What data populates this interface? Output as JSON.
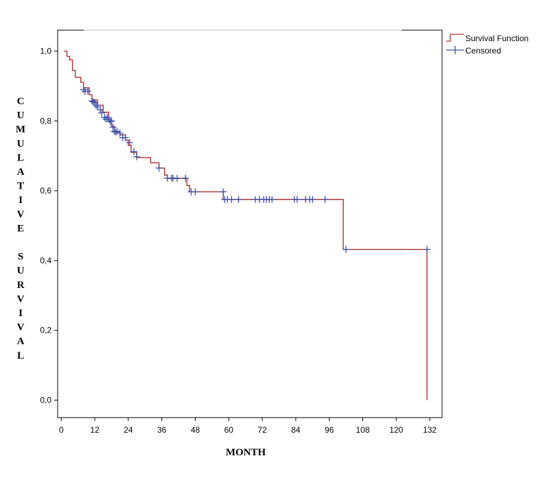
{
  "chart_data": {
    "type": "line",
    "title": "",
    "xlabel": "MONTH",
    "ylabel": "CUMULATIVE SURVIVAL",
    "xlim": [
      -1.3,
      136.4
    ],
    "ylim": [
      -0.05,
      1.06
    ],
    "x_ticks": [
      0,
      12,
      24,
      36,
      48,
      60,
      72,
      84,
      96,
      108,
      120,
      132
    ],
    "x_tick_labels": [
      "0",
      "12",
      "24",
      "36",
      "48",
      "60",
      "72",
      "84",
      "96",
      "108",
      "120",
      "132"
    ],
    "y_ticks": [
      0.0,
      0.2,
      0.4,
      0.6,
      0.8,
      1.0
    ],
    "y_tick_labels": [
      "0,0",
      "0,2",
      "0,4",
      "0,6",
      "0,8",
      "1,0"
    ],
    "grid": false,
    "legend": {
      "position": "outside-top-right",
      "entries": [
        "Survival Function",
        "Censored"
      ]
    },
    "colors": {
      "survival": "#b03030",
      "censored": "#3a4fa8"
    },
    "series": [
      {
        "name": "Survival Function",
        "step": true,
        "points": [
          [
            1.0,
            1.0
          ],
          [
            2.0,
            0.985
          ],
          [
            3.0,
            0.975
          ],
          [
            4.0,
            0.945
          ],
          [
            5.0,
            0.925
          ],
          [
            7.0,
            0.91
          ],
          [
            8.0,
            0.895
          ],
          [
            10.0,
            0.875
          ],
          [
            11.0,
            0.86
          ],
          [
            13.0,
            0.845
          ],
          [
            15.0,
            0.825
          ],
          [
            17.0,
            0.8
          ],
          [
            18.0,
            0.785
          ],
          [
            19.0,
            0.77
          ],
          [
            21.0,
            0.76
          ],
          [
            23.0,
            0.745
          ],
          [
            24.0,
            0.73
          ],
          [
            25.0,
            0.71
          ],
          [
            27.0,
            0.695
          ],
          [
            32.0,
            0.68
          ],
          [
            35.0,
            0.665
          ],
          [
            37.0,
            0.645
          ],
          [
            38.0,
            0.635
          ],
          [
            45.0,
            0.615
          ],
          [
            46.0,
            0.597
          ],
          [
            58.0,
            0.575
          ],
          [
            101.0,
            0.432
          ],
          [
            131.0,
            0.0
          ]
        ]
      },
      {
        "name": "Censored",
        "marker": "+",
        "points": [
          [
            8.0,
            0.89
          ],
          [
            8.5,
            0.885
          ],
          [
            9.5,
            0.885
          ],
          [
            11.0,
            0.857
          ],
          [
            11.5,
            0.855
          ],
          [
            12.0,
            0.852
          ],
          [
            12.5,
            0.845
          ],
          [
            13.0,
            0.84
          ],
          [
            14.0,
            0.832
          ],
          [
            14.5,
            0.823
          ],
          [
            15.5,
            0.81
          ],
          [
            16.0,
            0.805
          ],
          [
            16.5,
            0.81
          ],
          [
            17.0,
            0.805
          ],
          [
            17.5,
            0.798
          ],
          [
            18.0,
            0.8
          ],
          [
            18.5,
            0.782
          ],
          [
            19.0,
            0.77
          ],
          [
            19.5,
            0.768
          ],
          [
            20.0,
            0.77
          ],
          [
            21.0,
            0.765
          ],
          [
            22.0,
            0.752
          ],
          [
            23.0,
            0.752
          ],
          [
            24.5,
            0.738
          ],
          [
            26.0,
            0.712
          ],
          [
            27.0,
            0.697
          ],
          [
            35.0,
            0.665
          ],
          [
            38.0,
            0.636
          ],
          [
            39.5,
            0.636
          ],
          [
            40.0,
            0.636
          ],
          [
            41.5,
            0.636
          ],
          [
            44.5,
            0.636
          ],
          [
            46.5,
            0.597
          ],
          [
            48.0,
            0.597
          ],
          [
            58.0,
            0.597
          ],
          [
            58.5,
            0.575
          ],
          [
            59.5,
            0.575
          ],
          [
            61.0,
            0.575
          ],
          [
            63.5,
            0.575
          ],
          [
            69.5,
            0.575
          ],
          [
            71.0,
            0.575
          ],
          [
            72.5,
            0.575
          ],
          [
            73.5,
            0.575
          ],
          [
            74.5,
            0.575
          ],
          [
            75.5,
            0.575
          ],
          [
            83.5,
            0.575
          ],
          [
            84.5,
            0.575
          ],
          [
            87.5,
            0.575
          ],
          [
            89.0,
            0.575
          ],
          [
            90.0,
            0.575
          ],
          [
            94.5,
            0.575
          ],
          [
            102.0,
            0.432
          ],
          [
            131.0,
            0.432
          ]
        ]
      }
    ]
  }
}
